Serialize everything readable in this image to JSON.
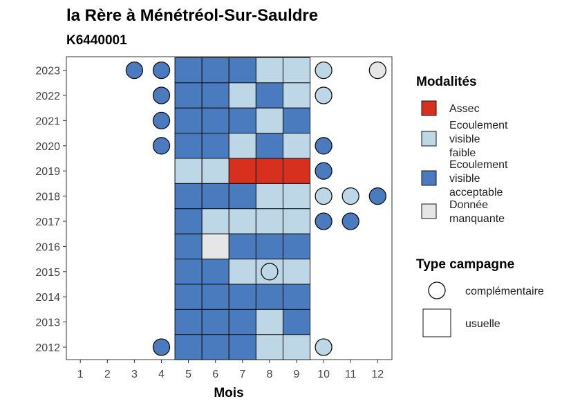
{
  "chart_data": {
    "type": "heatmap",
    "title": "la Rère à Ménétréol-Sur-Sauldre",
    "subtitle": "K6440001",
    "xlabel": "Mois",
    "ylabel": "",
    "x_ticks": [
      1,
      2,
      3,
      4,
      5,
      6,
      7,
      8,
      9,
      10,
      11,
      12
    ],
    "y_ticks": [
      2012,
      2013,
      2014,
      2015,
      2016,
      2017,
      2018,
      2019,
      2020,
      2021,
      2022,
      2023
    ],
    "grid": false,
    "legend_position": "right",
    "colors": {
      "assec": "#d7301f",
      "faible": "#bdd7e7",
      "acceptable": "#4a7bbe",
      "manquante": "#e6e6e6"
    },
    "legend_modalites": {
      "title": "Modalités",
      "items": [
        {
          "key": "assec",
          "label_lines": [
            "Assec"
          ]
        },
        {
          "key": "faible",
          "label_lines": [
            "Ecoulement",
            "visible",
            "faible"
          ]
        },
        {
          "key": "acceptable",
          "label_lines": [
            "Ecoulement",
            "visible",
            "acceptable"
          ]
        },
        {
          "key": "manquante",
          "label_lines": [
            "Donnée",
            "manquante"
          ]
        }
      ]
    },
    "legend_campagne": {
      "title": "Type campagne",
      "items": [
        {
          "shape": "circle",
          "label": "complémentaire"
        },
        {
          "shape": "square",
          "label": "usuelle"
        }
      ]
    },
    "usuelle": [
      {
        "year": 2023,
        "months": [
          "acceptable",
          "acceptable",
          "acceptable",
          "faible",
          "faible"
        ]
      },
      {
        "year": 2022,
        "months": [
          "acceptable",
          "acceptable",
          "faible",
          "acceptable",
          "faible"
        ]
      },
      {
        "year": 2021,
        "months": [
          "acceptable",
          "acceptable",
          "acceptable",
          "faible",
          "acceptable"
        ]
      },
      {
        "year": 2020,
        "months": [
          "acceptable",
          "acceptable",
          "faible",
          "acceptable",
          "faible"
        ]
      },
      {
        "year": 2019,
        "months": [
          "faible",
          "faible",
          "assec",
          "assec",
          "assec"
        ]
      },
      {
        "year": 2018,
        "months": [
          "acceptable",
          "acceptable",
          "acceptable",
          "faible",
          "faible"
        ]
      },
      {
        "year": 2017,
        "months": [
          "acceptable",
          "faible",
          "faible",
          "faible",
          "faible"
        ]
      },
      {
        "year": 2016,
        "months": [
          "acceptable",
          "manquante",
          "acceptable",
          "acceptable",
          "acceptable"
        ]
      },
      {
        "year": 2015,
        "months": [
          "acceptable",
          "acceptable",
          "faible",
          "faible",
          "faible"
        ]
      },
      {
        "year": 2014,
        "months": [
          "acceptable",
          "acceptable",
          "acceptable",
          "acceptable",
          "acceptable"
        ]
      },
      {
        "year": 2013,
        "months": [
          "acceptable",
          "acceptable",
          "acceptable",
          "faible",
          "acceptable"
        ]
      },
      {
        "year": 2012,
        "months": [
          "acceptable",
          "acceptable",
          "acceptable",
          "faible",
          "faible"
        ]
      }
    ],
    "usuelle_first_month": 5,
    "complementaire": [
      {
        "year": 2023,
        "month": 3,
        "value": "acceptable"
      },
      {
        "year": 2023,
        "month": 4,
        "value": "acceptable"
      },
      {
        "year": 2023,
        "month": 10,
        "value": "faible"
      },
      {
        "year": 2023,
        "month": 12,
        "value": "manquante"
      },
      {
        "year": 2022,
        "month": 4,
        "value": "acceptable"
      },
      {
        "year": 2022,
        "month": 10,
        "value": "faible"
      },
      {
        "year": 2021,
        "month": 4,
        "value": "acceptable"
      },
      {
        "year": 2020,
        "month": 4,
        "value": "acceptable"
      },
      {
        "year": 2020,
        "month": 10,
        "value": "acceptable"
      },
      {
        "year": 2019,
        "month": 10,
        "value": "acceptable"
      },
      {
        "year": 2018,
        "month": 10,
        "value": "faible"
      },
      {
        "year": 2018,
        "month": 11,
        "value": "faible"
      },
      {
        "year": 2018,
        "month": 12,
        "value": "acceptable"
      },
      {
        "year": 2017,
        "month": 10,
        "value": "acceptable"
      },
      {
        "year": 2017,
        "month": 11,
        "value": "acceptable"
      },
      {
        "year": 2015,
        "month": 8,
        "value": "faible"
      },
      {
        "year": 2012,
        "month": 4,
        "value": "acceptable"
      },
      {
        "year": 2012,
        "month": 10,
        "value": "faible"
      }
    ]
  }
}
